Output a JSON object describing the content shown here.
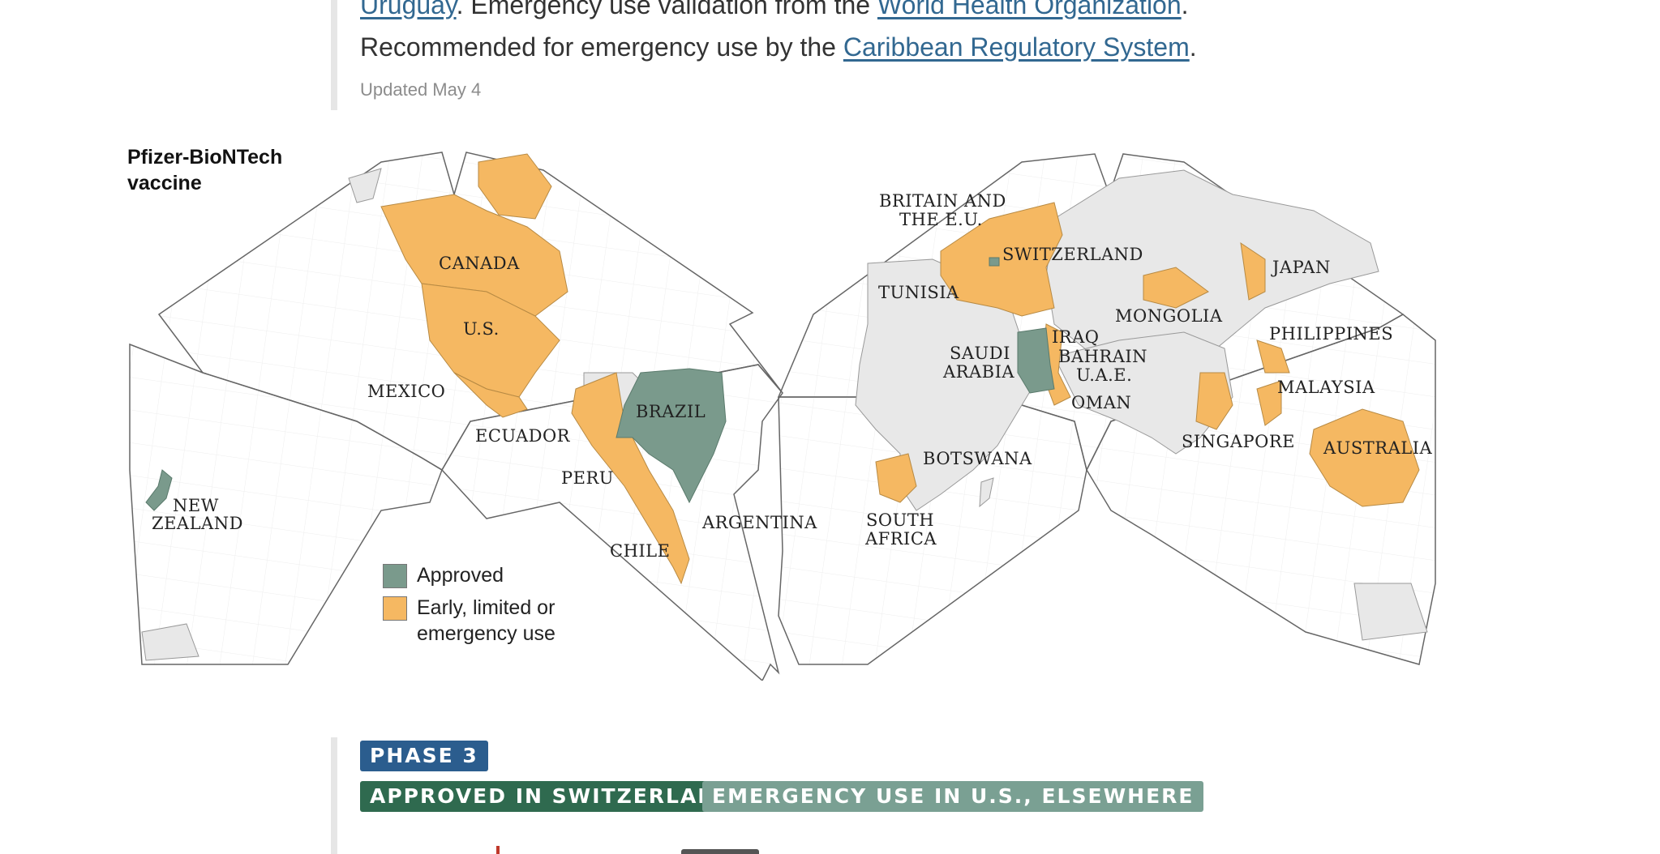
{
  "article": {
    "line1_link1": "Uruguay",
    "line1_mid": ". Emergency use validation from the ",
    "line1_link2": "World Health Organization",
    "line1_end": ".",
    "line2_pre": "Recommended for emergency use by the ",
    "line2_link": "Caribbean Regulatory System",
    "line2_end": ".",
    "updated": "Updated May 4"
  },
  "map": {
    "title_line1": "Pfizer-BioNTech",
    "title_line2": "vaccine",
    "colors": {
      "approved": "#7a9a8c",
      "early": "#f5b862",
      "other": "#e8e8e8",
      "ocean": "#ffffff",
      "outline": "#666666"
    },
    "labels": {
      "canada": "CANADA",
      "us": "U.S.",
      "mexico": "MEXICO",
      "ecuador": "ECUADOR",
      "peru": "PERU",
      "brazil": "BRAZIL",
      "chile": "CHILE",
      "argentina": "ARGENTINA",
      "new_zealand_1": "NEW",
      "new_zealand_2": "ZEALAND",
      "britain_1": "BRITAIN AND",
      "britain_2": "THE E.U.",
      "switzerland": "SWITZERLAND",
      "tunisia": "TUNISIA",
      "saudi_1": "SAUDI",
      "saudi_2": "ARABIA",
      "iraq": "IRAQ",
      "bahrain": "BAHRAIN",
      "uae": "U.A.E.",
      "oman": "OMAN",
      "mongolia": "MONGOLIA",
      "japan": "JAPAN",
      "philippines": "PHILIPPINES",
      "malaysia": "MALAYSIA",
      "singapore": "SINGAPORE",
      "australia": "AUSTRALIA",
      "botswana": "BOTSWANA",
      "south_africa_1": "SOUTH",
      "south_africa_2": "AFRICA"
    },
    "legend": {
      "approved": "Approved",
      "early": "Early, limited or emergency use"
    }
  },
  "badges": {
    "phase": "PHASE 3",
    "approved": "APPROVED IN SWITZERLAND",
    "emergency": "EMERGENCY USE IN U.S., ELSEWHERE"
  }
}
